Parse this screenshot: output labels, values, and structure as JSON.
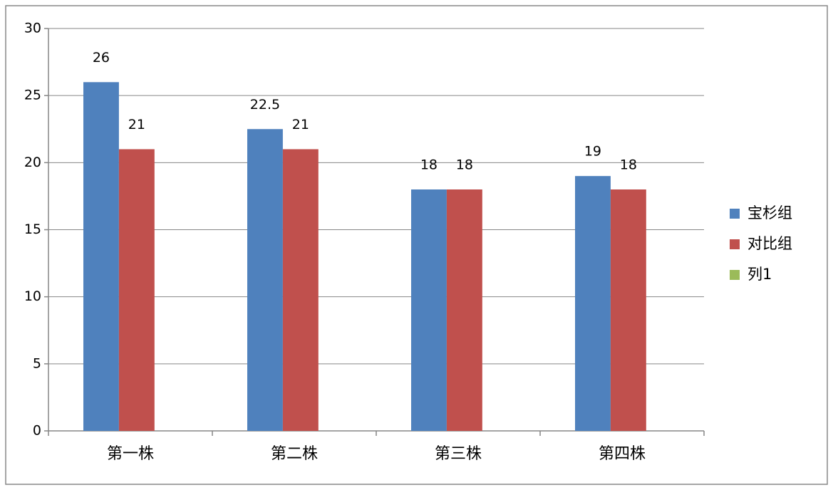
{
  "chart_data": {
    "type": "bar",
    "categories": [
      "第一株",
      "第二株",
      "第三株",
      "第四株"
    ],
    "series": [
      {
        "name": "宝杉组",
        "color": "#4f81bd",
        "values": [
          26,
          22.5,
          18,
          19
        ]
      },
      {
        "name": "对比组",
        "color": "#c0504d",
        "values": [
          21,
          21,
          18,
          18
        ]
      },
      {
        "name": "列1",
        "color": "#9bbb59",
        "values": [
          null,
          null,
          null,
          null
        ]
      }
    ],
    "ylim": [
      0,
      30
    ],
    "yticks": [
      0,
      5,
      10,
      15,
      20,
      25,
      30
    ],
    "grid": true,
    "legend": "right"
  }
}
